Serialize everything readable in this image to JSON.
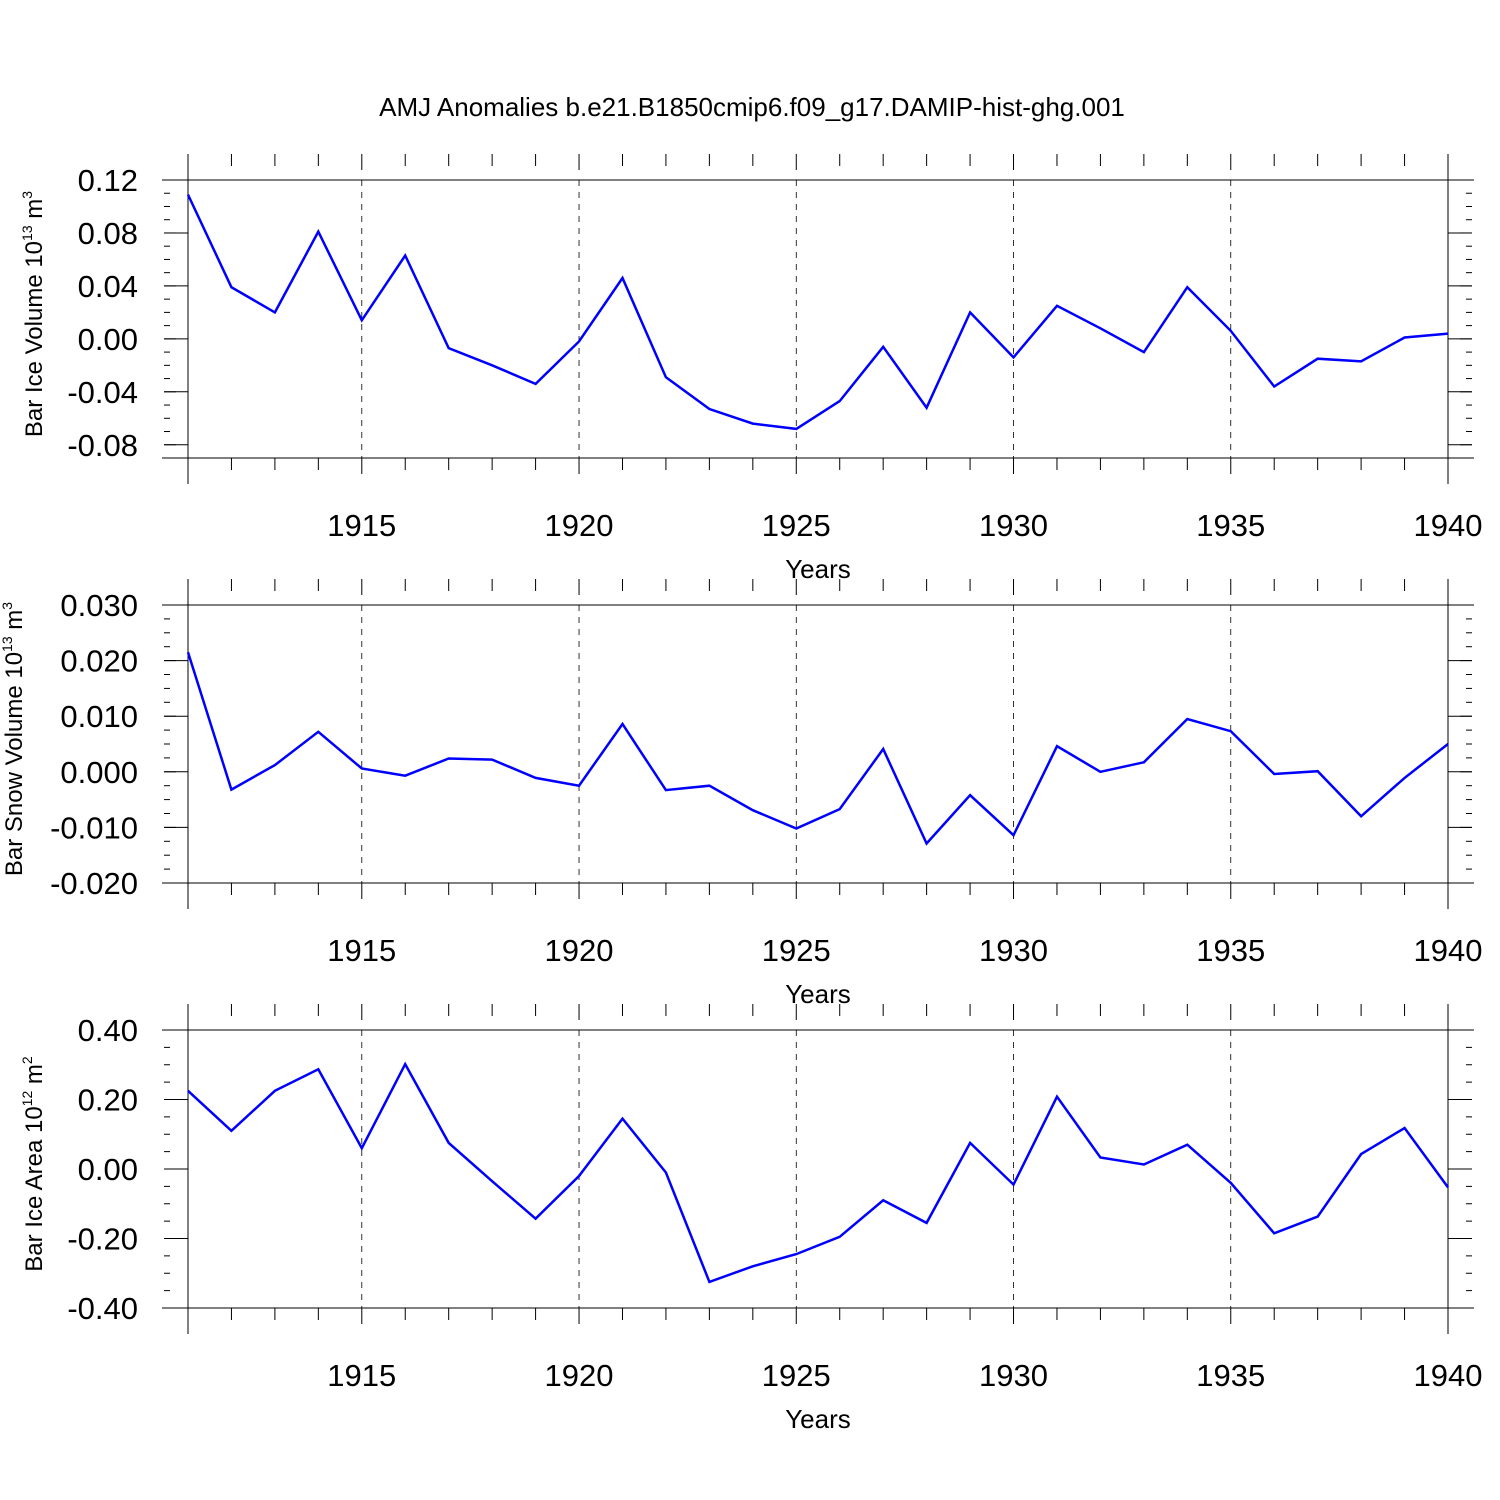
{
  "title": "AMJ Anomalies b.e21.B1850cmip6.f09_g17.DAMIP-hist-ghg.001",
  "line_color": "#0000ff",
  "chart_data": [
    {
      "type": "line",
      "ylabel": "Bar Ice Volume 10",
      "ylabel_exp": "13",
      "ylabel_unit": " m",
      "ylabel_unit_exp": "3",
      "xlabel": "Years",
      "xlim": [
        1911,
        1940
      ],
      "ylim": [
        -0.09,
        0.12
      ],
      "yticks": [
        0.12,
        0.08,
        0.04,
        0.0,
        -0.04,
        -0.08
      ],
      "ytick_labels": [
        "0.12",
        "0.08",
        "0.04",
        "0.00",
        "-0.04",
        "-0.08"
      ],
      "xticks": [
        1915,
        1920,
        1925,
        1930,
        1935,
        1940
      ],
      "xtick_labels": [
        "1915",
        "1920",
        "1925",
        "1930",
        "1935",
        "1940"
      ],
      "x": [
        1911,
        1912,
        1913,
        1914,
        1915,
        1916,
        1917,
        1918,
        1919,
        1920,
        1921,
        1922,
        1923,
        1924,
        1925,
        1926,
        1927,
        1928,
        1929,
        1930,
        1931,
        1932,
        1933,
        1934,
        1935,
        1936,
        1937,
        1938,
        1939,
        1940
      ],
      "series": [
        {
          "values": [
            0.109,
            0.039,
            0.02,
            0.081,
            0.014,
            0.063,
            -0.007,
            -0.02,
            -0.034,
            -0.002,
            0.046,
            -0.029,
            -0.053,
            -0.064,
            -0.068,
            -0.047,
            -0.006,
            -0.052,
            0.02,
            -0.014,
            0.025,
            0.008,
            -0.01,
            0.039,
            0.006,
            -0.036,
            -0.015,
            -0.017,
            0.001,
            0.004
          ]
        }
      ]
    },
    {
      "type": "line",
      "ylabel": "Bar Snow Volume 10",
      "ylabel_exp": "13",
      "ylabel_unit": " m",
      "ylabel_unit_exp": "3",
      "xlabel": "Years",
      "xlim": [
        1911,
        1940
      ],
      "ylim": [
        -0.02,
        0.03
      ],
      "yticks": [
        0.03,
        0.02,
        0.01,
        0.0,
        -0.01,
        -0.02
      ],
      "ytick_labels": [
        "0.030",
        "0.020",
        "0.010",
        "0.000",
        "-0.010",
        "-0.020"
      ],
      "xticks": [
        1915,
        1920,
        1925,
        1930,
        1935,
        1940
      ],
      "xtick_labels": [
        "1915",
        "1920",
        "1925",
        "1930",
        "1935",
        "1940"
      ],
      "x": [
        1911,
        1912,
        1913,
        1914,
        1915,
        1916,
        1917,
        1918,
        1919,
        1920,
        1921,
        1922,
        1923,
        1924,
        1925,
        1926,
        1927,
        1928,
        1929,
        1930,
        1931,
        1932,
        1933,
        1934,
        1935,
        1936,
        1937,
        1938,
        1939,
        1940
      ],
      "series": [
        {
          "values": [
            0.0215,
            -0.0032,
            0.0012,
            0.0072,
            0.0006,
            -0.0007,
            0.0024,
            0.0022,
            -0.0011,
            -0.0025,
            0.0086,
            -0.0033,
            -0.0025,
            -0.0069,
            -0.0102,
            -0.0067,
            0.0041,
            -0.0129,
            -0.0042,
            -0.0114,
            0.0046,
            -0.0,
            0.0017,
            0.0095,
            0.0073,
            -0.0004,
            0.0001,
            -0.008,
            -0.0011,
            0.005
          ]
        }
      ]
    },
    {
      "type": "line",
      "ylabel": "Bar Ice Area 10",
      "ylabel_exp": "12",
      "ylabel_unit": " m",
      "ylabel_unit_exp": "2",
      "xlabel": "Years",
      "xlim": [
        1911,
        1940
      ],
      "ylim": [
        -0.4,
        0.4
      ],
      "yticks": [
        0.4,
        0.2,
        0.0,
        -0.2,
        -0.4
      ],
      "ytick_labels": [
        "0.40",
        "0.20",
        "0.00",
        "-0.20",
        "-0.40"
      ],
      "xticks": [
        1915,
        1920,
        1925,
        1930,
        1935,
        1940
      ],
      "xtick_labels": [
        "1915",
        "1920",
        "1925",
        "1930",
        "1935",
        "1940"
      ],
      "x": [
        1911,
        1912,
        1913,
        1914,
        1915,
        1916,
        1917,
        1918,
        1919,
        1920,
        1921,
        1922,
        1923,
        1924,
        1925,
        1926,
        1927,
        1928,
        1929,
        1930,
        1931,
        1932,
        1933,
        1934,
        1935,
        1936,
        1937,
        1938,
        1939,
        1940
      ],
      "series": [
        {
          "values": [
            0.225,
            0.11,
            0.225,
            0.287,
            0.06,
            0.302,
            0.075,
            -0.035,
            -0.143,
            -0.02,
            0.145,
            -0.01,
            -0.325,
            -0.28,
            -0.245,
            -0.195,
            -0.09,
            -0.155,
            0.075,
            -0.045,
            0.208,
            0.033,
            0.013,
            0.07,
            -0.04,
            -0.185,
            -0.137,
            0.043,
            0.118,
            -0.053
          ]
        }
      ]
    }
  ]
}
